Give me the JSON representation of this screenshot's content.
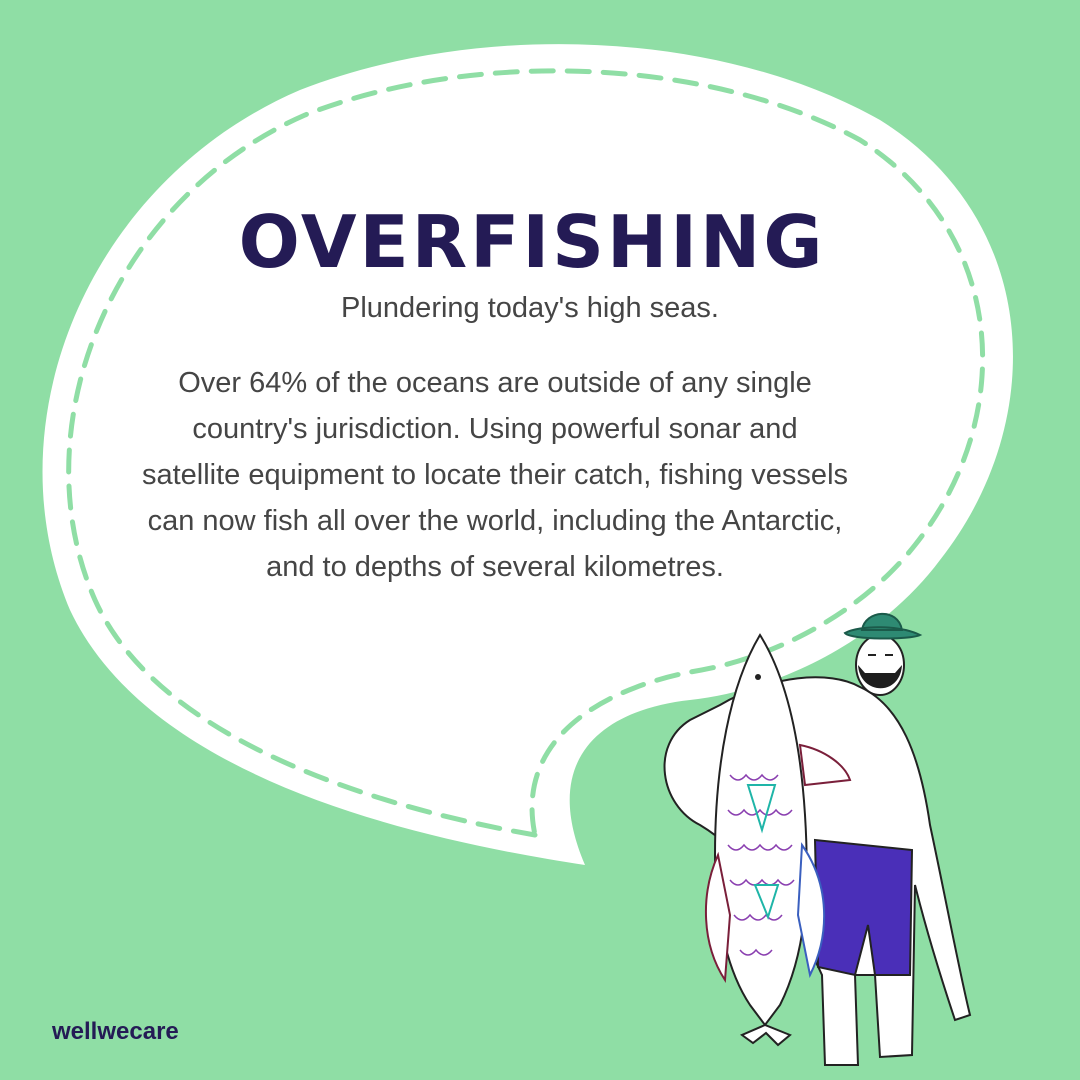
{
  "post": {
    "title": "OVERFISHING",
    "subtitle": "Plundering today's high seas.",
    "body": "Over 64% of the oceans are outside of any single country's jurisdiction. Using powerful sonar and satellite equipment to locate their catch, fishing vessels can now fish all over the world, including the Antarctic, and to depths of several kilometres.",
    "brand": "wellwecare"
  },
  "colors": {
    "background": "#8fdea5",
    "bubble": "#ffffff",
    "dash": "#8fdea5",
    "title": "#241b55",
    "text": "#454545",
    "shorts": "#4a2fb8",
    "hat": "#2e8a73"
  },
  "illustration": {
    "icon": "fisherman-holding-fish-icon"
  }
}
